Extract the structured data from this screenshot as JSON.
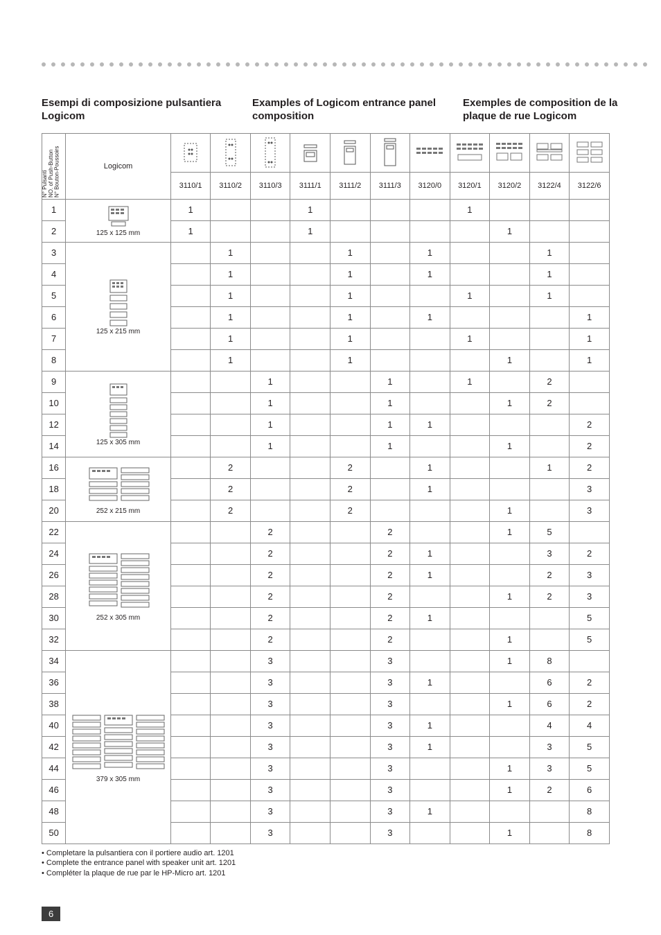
{
  "headings": {
    "it": "Esempi di composizione pulsantiera Logicom",
    "en": "Examples of Logicom entrance panel composition",
    "fr": "Exemples de composition de la plaque de rue Logicom"
  },
  "logicom_label": "Logicom",
  "num_header_lines": [
    "N° Pulsanti",
    "NO. of Push-Button",
    "N° Bouton-Poussoirs"
  ],
  "column_codes": [
    "3110/1",
    "3110/2",
    "3110/3",
    "3111/1",
    "3111/2",
    "3111/3",
    "3120/0",
    "3120/1",
    "3120/2",
    "3122/4",
    "3122/6"
  ],
  "groups": [
    {
      "dim": "125 x 125 mm",
      "rows": [
        {
          "n": "1",
          "v": [
            "1",
            "",
            "",
            "1",
            "",
            "",
            "",
            "1",
            "",
            "",
            ""
          ]
        },
        {
          "n": "2",
          "v": [
            "1",
            "",
            "",
            "1",
            "",
            "",
            "",
            "",
            "1",
            "",
            ""
          ]
        }
      ]
    },
    {
      "dim": "125 x 215 mm",
      "rows": [
        {
          "n": "3",
          "v": [
            "",
            "1",
            "",
            "",
            "1",
            "",
            "1",
            "",
            "",
            "1",
            ""
          ]
        },
        {
          "n": "4",
          "v": [
            "",
            "1",
            "",
            "",
            "1",
            "",
            "1",
            "",
            "",
            "1",
            ""
          ]
        },
        {
          "n": "5",
          "v": [
            "",
            "1",
            "",
            "",
            "1",
            "",
            "",
            "1",
            "",
            "1",
            ""
          ]
        },
        {
          "n": "6",
          "v": [
            "",
            "1",
            "",
            "",
            "1",
            "",
            "1",
            "",
            "",
            "",
            "1"
          ]
        },
        {
          "n": "7",
          "v": [
            "",
            "1",
            "",
            "",
            "1",
            "",
            "",
            "1",
            "",
            "",
            "1"
          ]
        },
        {
          "n": "8",
          "v": [
            "",
            "1",
            "",
            "",
            "1",
            "",
            "",
            "",
            "1",
            "",
            "1"
          ]
        }
      ]
    },
    {
      "dim": "125 x 305 mm",
      "rows": [
        {
          "n": "9",
          "v": [
            "",
            "",
            "1",
            "",
            "",
            "1",
            "",
            "1",
            "",
            "2",
            ""
          ]
        },
        {
          "n": "10",
          "v": [
            "",
            "",
            "1",
            "",
            "",
            "1",
            "",
            "",
            "1",
            "2",
            ""
          ]
        },
        {
          "n": "12",
          "v": [
            "",
            "",
            "1",
            "",
            "",
            "1",
            "1",
            "",
            "",
            "",
            "2"
          ]
        },
        {
          "n": "14",
          "v": [
            "",
            "",
            "1",
            "",
            "",
            "1",
            "",
            "",
            "1",
            "",
            "2"
          ]
        }
      ]
    },
    {
      "dim": "252 x 215 mm",
      "rows": [
        {
          "n": "16",
          "v": [
            "",
            "2",
            "",
            "",
            "2",
            "",
            "1",
            "",
            "",
            "1",
            "2"
          ]
        },
        {
          "n": "18",
          "v": [
            "",
            "2",
            "",
            "",
            "2",
            "",
            "1",
            "",
            "",
            "",
            "3"
          ]
        },
        {
          "n": "20",
          "v": [
            "",
            "2",
            "",
            "",
            "2",
            "",
            "",
            "",
            "1",
            "",
            "3"
          ]
        }
      ]
    },
    {
      "dim": "252 x 305 mm",
      "rows": [
        {
          "n": "22",
          "v": [
            "",
            "",
            "2",
            "",
            "",
            "2",
            "",
            "",
            "1",
            "5",
            ""
          ]
        },
        {
          "n": "24",
          "v": [
            "",
            "",
            "2",
            "",
            "",
            "2",
            "1",
            "",
            "",
            "3",
            "2"
          ]
        },
        {
          "n": "26",
          "v": [
            "",
            "",
            "2",
            "",
            "",
            "2",
            "1",
            "",
            "",
            "2",
            "3"
          ]
        },
        {
          "n": "28",
          "v": [
            "",
            "",
            "2",
            "",
            "",
            "2",
            "",
            "",
            "1",
            "2",
            "3"
          ]
        },
        {
          "n": "30",
          "v": [
            "",
            "",
            "2",
            "",
            "",
            "2",
            "1",
            "",
            "",
            "",
            "5"
          ]
        },
        {
          "n": "32",
          "v": [
            "",
            "",
            "2",
            "",
            "",
            "2",
            "",
            "",
            "1",
            "",
            "5"
          ]
        }
      ]
    },
    {
      "dim": "379 x 305 mm",
      "rows": [
        {
          "n": "34",
          "v": [
            "",
            "",
            "3",
            "",
            "",
            "3",
            "",
            "",
            "1",
            "8",
            ""
          ]
        },
        {
          "n": "36",
          "v": [
            "",
            "",
            "3",
            "",
            "",
            "3",
            "1",
            "",
            "",
            "6",
            "2"
          ]
        },
        {
          "n": "38",
          "v": [
            "",
            "",
            "3",
            "",
            "",
            "3",
            "",
            "",
            "1",
            "6",
            "2"
          ]
        },
        {
          "n": "40",
          "v": [
            "",
            "",
            "3",
            "",
            "",
            "3",
            "1",
            "",
            "",
            "4",
            "4"
          ]
        },
        {
          "n": "42",
          "v": [
            "",
            "",
            "3",
            "",
            "",
            "3",
            "1",
            "",
            "",
            "3",
            "5"
          ]
        },
        {
          "n": "44",
          "v": [
            "",
            "",
            "3",
            "",
            "",
            "3",
            "",
            "",
            "1",
            "3",
            "5"
          ]
        },
        {
          "n": "46",
          "v": [
            "",
            "",
            "3",
            "",
            "",
            "3",
            "",
            "",
            "1",
            "2",
            "6"
          ]
        },
        {
          "n": "48",
          "v": [
            "",
            "",
            "3",
            "",
            "",
            "3",
            "1",
            "",
            "",
            "",
            "8"
          ]
        },
        {
          "n": "50",
          "v": [
            "",
            "",
            "3",
            "",
            "",
            "3",
            "",
            "",
            "1",
            "",
            "8"
          ]
        }
      ]
    }
  ],
  "footnotes": [
    "• Completare la pulsantiera con il portiere audio art. 1201",
    "• Complete the entrance panel with speaker unit art. 1201",
    "• Compléter la plaque de rue par le HP-Micro art. 1201"
  ],
  "page_number": "6",
  "colors": {
    "text": "#231f20",
    "border": "#8a8a8a",
    "dot": "#b7b7b7",
    "pagenum_bg": "#3c3c3c",
    "pagenum_fg": "#ffffff"
  }
}
